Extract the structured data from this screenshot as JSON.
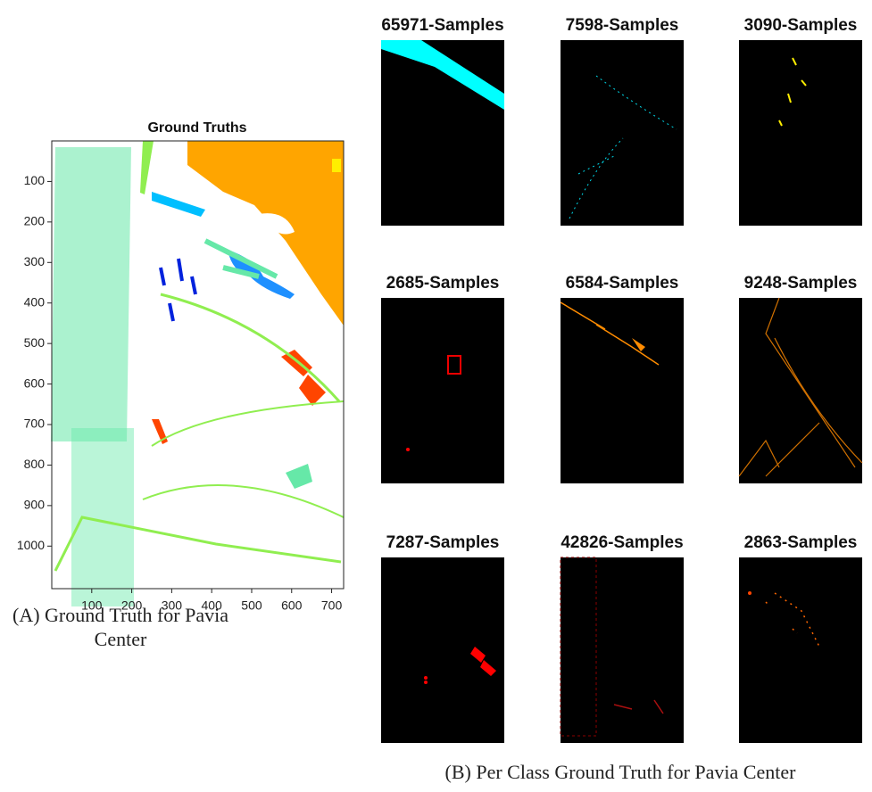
{
  "figure_a": {
    "title": "Ground Truths",
    "xticks": [
      100,
      200,
      300,
      400,
      500,
      600,
      700
    ],
    "yticks": [
      100,
      200,
      300,
      400,
      500,
      600,
      700,
      800,
      900,
      1000
    ],
    "xlim": [
      0,
      730
    ],
    "ylim": [
      0,
      1105
    ],
    "caption": "(A) Ground Truth for Pavia Center"
  },
  "figure_b": {
    "panels": [
      "65971-Samples",
      "7598-Samples",
      "3090-Samples",
      "2685-Samples",
      "6584-Samples",
      "9248-Samples",
      "7287-Samples",
      "42826-Samples",
      "2863-Samples"
    ],
    "caption": "(B) Per Class Ground Truth for Pavia Center"
  }
}
